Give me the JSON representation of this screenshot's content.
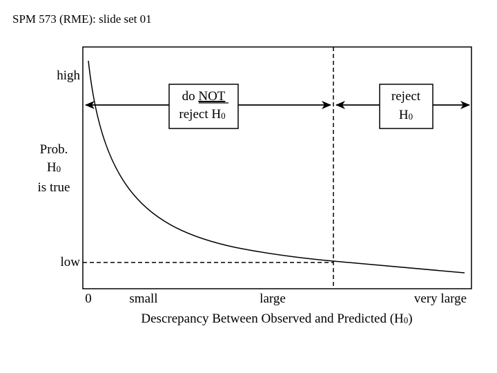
{
  "slide": {
    "header": "SPM 573 (RME): slide set 01"
  },
  "y_axis": {
    "high_label": "high",
    "low_label": "low",
    "title_line1": "Prob.",
    "title_line2_main": "H",
    "title_line2_sub": "0",
    "title_line3": "is true"
  },
  "x_axis": {
    "ticks": [
      "0",
      "small",
      "large",
      "very large"
    ],
    "title_main": "Descrepancy Between Observed and Predicted (H",
    "title_sub": "0",
    "title_end": ")"
  },
  "regions": {
    "left_box_line1_prefix": "do ",
    "left_box_line1_emph": "NOT",
    "left_box_line2_main": "reject H",
    "left_box_line2_sub": "0",
    "right_box_line1": "reject",
    "right_box_line2_main": "H",
    "right_box_line2_sub": "0"
  },
  "chart_data": {
    "type": "line",
    "curve": "decreasing",
    "x_levels": [
      "0",
      "small",
      "large",
      "very large"
    ],
    "y_levels": [
      "low",
      "high"
    ]
  }
}
